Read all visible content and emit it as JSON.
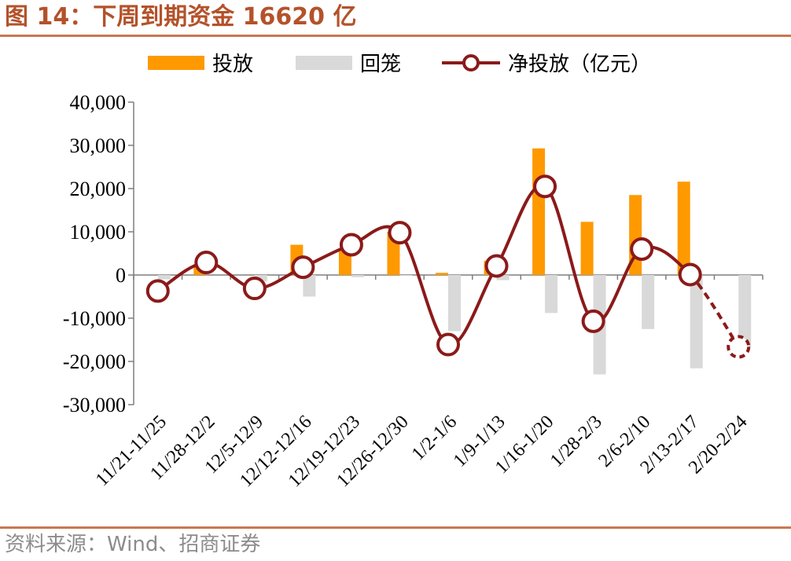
{
  "header": {
    "title": "图 14：下周到期资金 16620 亿"
  },
  "footer": {
    "source": "资料来源：Wind、招商证券"
  },
  "colors": {
    "accent": "#b4522a",
    "rule": "#c8784f",
    "injection_bar": "#ff9900",
    "withdrawal_bar": "#d9d9d9",
    "net_line": "#8b1a1a"
  },
  "chart_data": {
    "type": "bar",
    "title": "",
    "xlabel": "",
    "ylabel": "",
    "ylim": [
      -30000,
      40000
    ],
    "yticks": [
      40000,
      30000,
      20000,
      10000,
      0,
      -10000,
      -20000,
      -30000
    ],
    "ytick_labels": [
      "40,000",
      "30,000",
      "20,000",
      "10,000",
      "0",
      "-10,000",
      "-20,000",
      "-30,000"
    ],
    "legend_position": "top",
    "categories": [
      "11/21-11/25",
      "11/28-12/2",
      "12/5-12/9",
      "12/12-12/16",
      "12/19-12/23",
      "12/26-12/30",
      "1/2-1/6",
      "1/9-1/13",
      "1/16-1/20",
      "1/28-2/3",
      "2/6-2/10",
      "2/13-2/17",
      "2/20-2/24"
    ],
    "series": [
      {
        "name": "投放",
        "type": "bar",
        "color": "#ff9900",
        "values": [
          0,
          2000,
          0,
          7000,
          6000,
          10000,
          500,
          3300,
          29300,
          12300,
          18500,
          21600,
          0
        ]
      },
      {
        "name": "回笼",
        "type": "bar",
        "color": "#d9d9d9",
        "values": [
          -1000,
          0,
          -1500,
          -5000,
          -500,
          -200,
          -13000,
          -1200,
          -8800,
          -23000,
          -12500,
          -21600,
          -16620
        ]
      },
      {
        "name": "净投放（亿元）",
        "type": "line",
        "color": "#8b1a1a",
        "values": [
          -3700,
          2900,
          -3100,
          1800,
          7000,
          9800,
          -16100,
          2100,
          20500,
          -10700,
          6000,
          100,
          -16620
        ],
        "projected_from_index": 11
      }
    ]
  }
}
